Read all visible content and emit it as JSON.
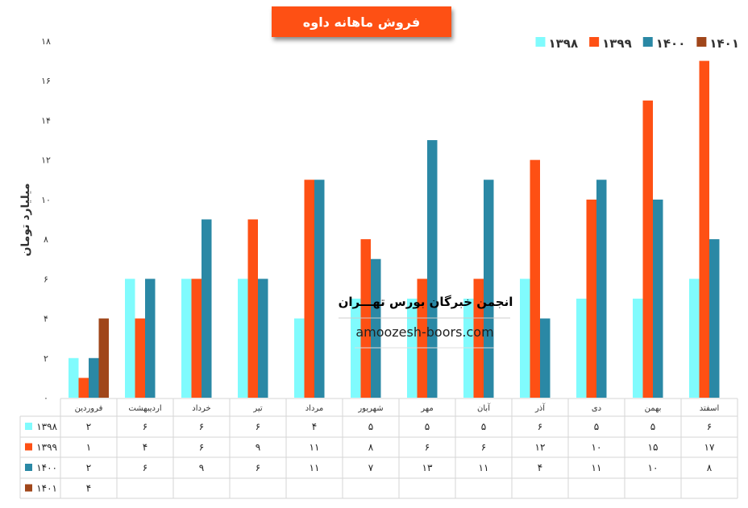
{
  "chart_data": {
    "type": "bar",
    "title": "فروش ماهانه داوه",
    "ylabel": "میلیارد تومان",
    "xlabel": "",
    "ylim": [
      0,
      18
    ],
    "yticks": [
      "۰",
      "۲",
      "۴",
      "۶",
      "۸",
      "۱۰",
      "۱۲",
      "۱۴",
      "۱۶",
      "۱۸"
    ],
    "grid": false,
    "legend_position": "top-right",
    "categories": [
      "فروردین",
      "اردیبهشت",
      "خرداد",
      "تیر",
      "مرداد",
      "شهریور",
      "مهر",
      "آبان",
      "آذر",
      "دی",
      "بهمن",
      "اسفتد"
    ],
    "series": [
      {
        "name": "۱۳۹۸",
        "color": "#80fbfd",
        "values": [
          2,
          6,
          6,
          6,
          4,
          5,
          5,
          5,
          6,
          5,
          5,
          6
        ]
      },
      {
        "name": "۱۳۹۹",
        "color": "#fe5014",
        "values": [
          1,
          4,
          6,
          9,
          11,
          8,
          6,
          6,
          12,
          10,
          15,
          17
        ]
      },
      {
        "name": "۱۴۰۰",
        "color": "#2a88a5",
        "values": [
          2,
          6,
          9,
          6,
          11,
          7,
          13,
          11,
          4,
          11,
          10,
          8
        ]
      },
      {
        "name": "۱۴۰۱",
        "color": "#a0461a",
        "values": [
          4,
          null,
          null,
          null,
          null,
          null,
          null,
          null,
          null,
          null,
          null,
          null
        ]
      }
    ],
    "data_table": true
  },
  "watermark": {
    "line1": "انجمن خبرگان بورس تهـــران",
    "line2": "amoozesh-boors.com"
  }
}
